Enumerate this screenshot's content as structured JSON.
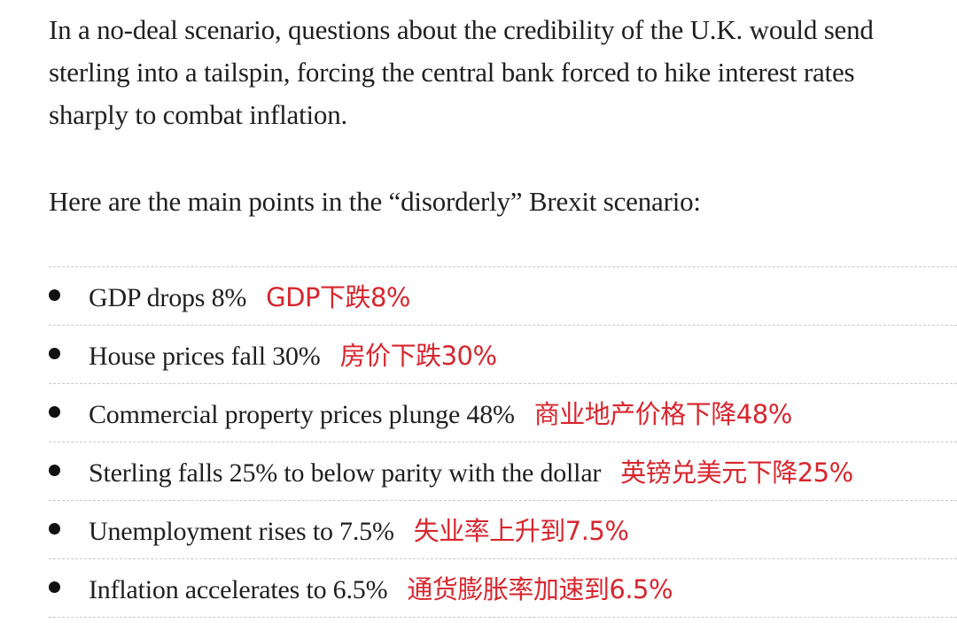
{
  "article": {
    "paragraph_1": "In a no-deal scenario, questions about the credibility of the U.K. would send sterling into a tailspin, forcing the central bank forced to hike interest rates sharply to combat inflation.",
    "paragraph_2": "Here are the main points in the “disorderly” Brexit scenario:",
    "bullets": [
      {
        "en": "GDP drops 8%",
        "zh": "GDP下跌8%"
      },
      {
        "en": "House prices fall 30%",
        "zh": "房价下跌30%"
      },
      {
        "en": "Commercial property prices plunge 48%",
        "zh": "商业地产价格下降48%"
      },
      {
        "en": "Sterling falls 25% to below parity with the dollar",
        "zh": "英镑兑美元下降25%"
      },
      {
        "en": "Unemployment rises to 7.5%",
        "zh": "失业率上升到7.5%"
      },
      {
        "en": "Inflation accelerates to 6.5%",
        "zh": "通货膨胀率加速到6.5%"
      }
    ]
  },
  "colors": {
    "body_text": "#1f1f1f",
    "annotation_red": "#d7262e",
    "divider": "#c9c9c9"
  }
}
